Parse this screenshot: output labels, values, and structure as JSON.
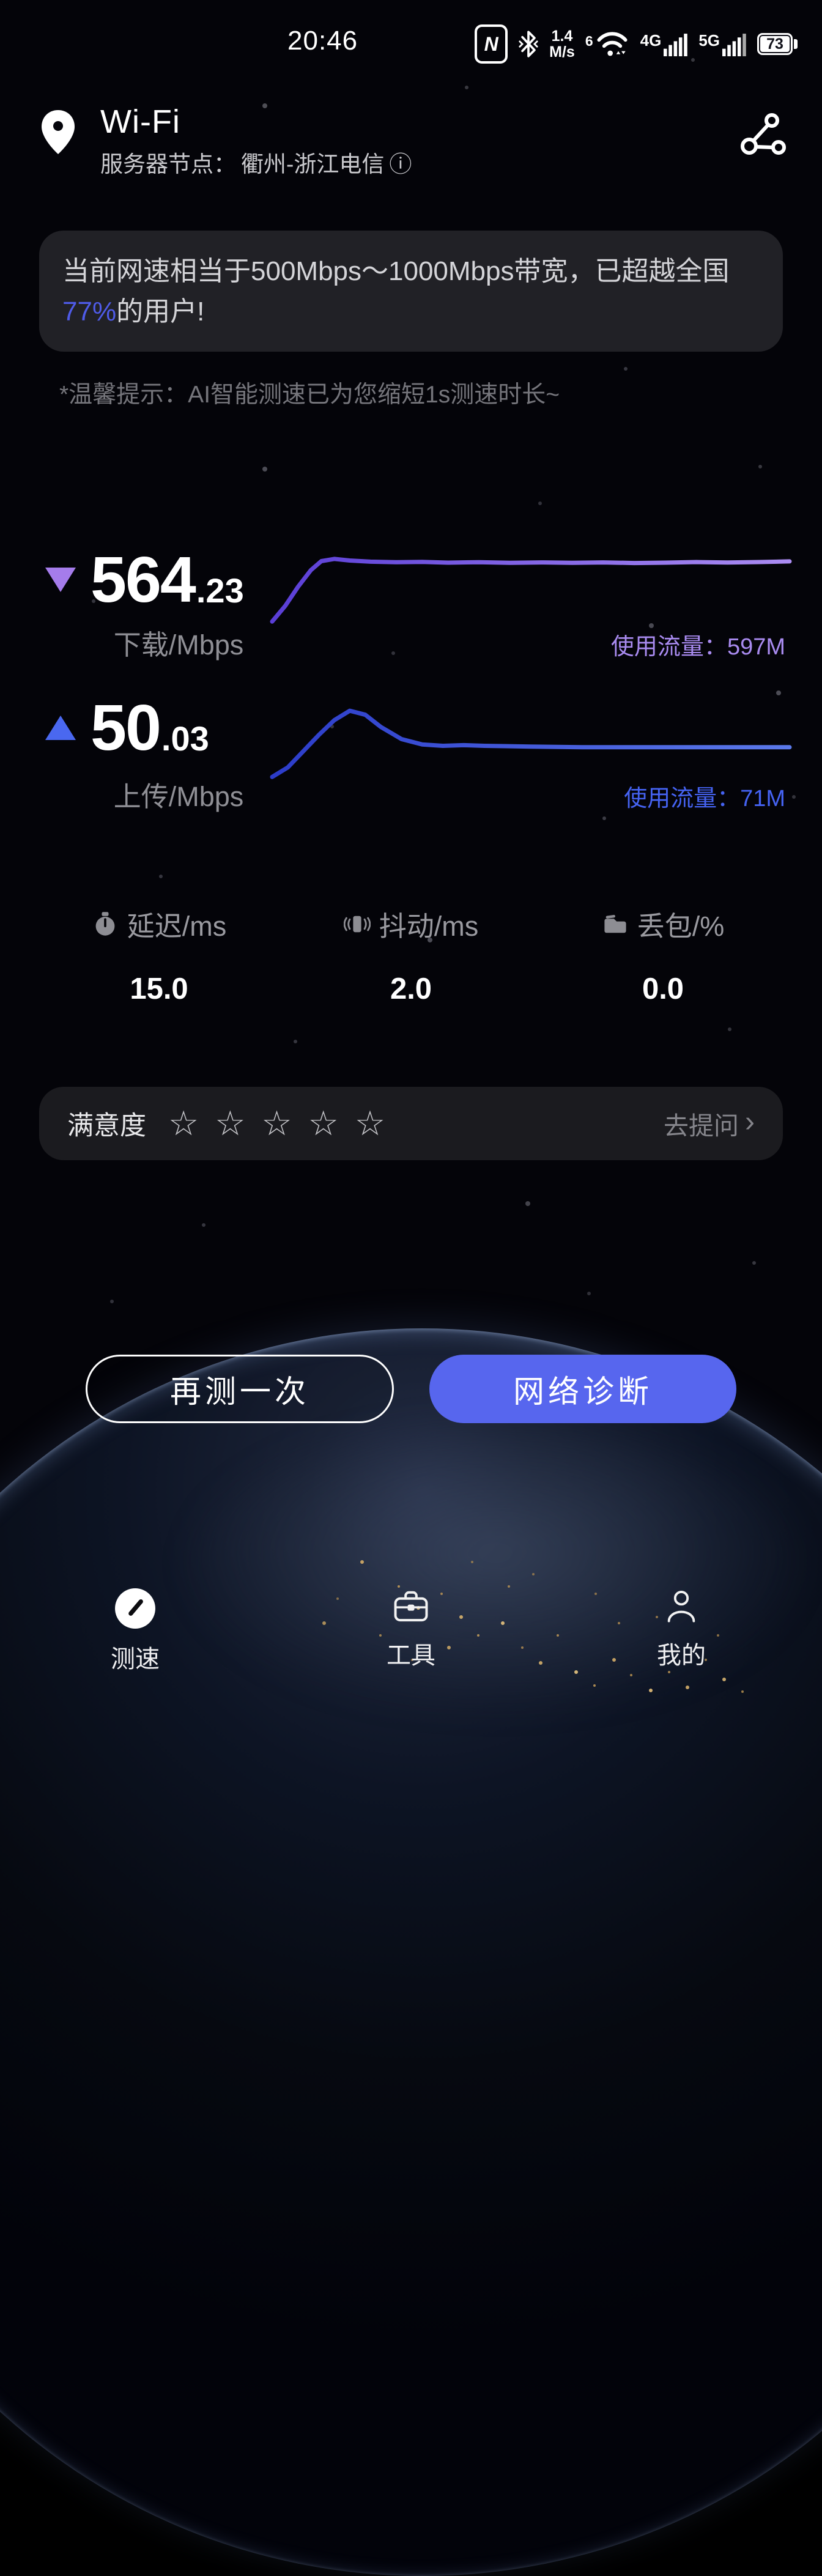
{
  "status_bar": {
    "time": "20:46",
    "nfc_glyph": "N",
    "net_speed_value": "1.4",
    "net_speed_unit": "M/s",
    "wifi_generation": "6",
    "cellular_1": "4G",
    "cellular_2": "5G",
    "battery_percent": "73"
  },
  "header": {
    "title": "Wi-Fi",
    "server_label": "服务器节点：",
    "server_value": "衢州-浙江电信",
    "info_icon": "ⓘ"
  },
  "banner": {
    "text_before": "当前网速相当于500Mbps～1000Mbps带宽，已超越全国",
    "highlight": "77%",
    "text_after": "的用户!"
  },
  "tip": "*温馨提示：AI智能测速已为您缩短1s测速时长~",
  "download": {
    "value_int": "564",
    "value_dec": ".23",
    "label": "下载/Mbps",
    "usage_label": "使用流量：",
    "usage_value": "597M"
  },
  "upload": {
    "value_int": "50",
    "value_dec": ".03",
    "label": "上传/Mbps",
    "usage_label": "使用流量：",
    "usage_value": "71M"
  },
  "stats": [
    {
      "label": "延迟/ms",
      "value": "15.0",
      "icon": "stopwatch-icon"
    },
    {
      "label": "抖动/ms",
      "value": "2.0",
      "icon": "vibrate-icon"
    },
    {
      "label": "丢包/%",
      "value": "0.0",
      "icon": "packet-box-icon"
    }
  ],
  "satisfaction": {
    "label": "满意度",
    "star_count": 5,
    "star_char": "☆",
    "action_label": "去提问",
    "chevron": "›"
  },
  "buttons": {
    "retest": "再测一次",
    "diagnose": "网络诊断"
  },
  "nav": [
    {
      "label": "测速",
      "icon": "speedometer-icon",
      "active": true
    },
    {
      "label": "工具",
      "icon": "toolbox-icon",
      "active": false
    },
    {
      "label": "我的",
      "icon": "profile-icon",
      "active": false
    }
  ],
  "colors": {
    "background": "#040409",
    "banner_bg": "#212126",
    "card_bg": "#1b1b1f",
    "highlight_blue": "#4f5be8",
    "download_accent": "#a57ceb",
    "download_usage_text": "#a98bf0",
    "upload_accent": "#4a68f0",
    "upload_usage_text": "#4563f2",
    "diagnose_button": "#5766ee",
    "muted_text": "#8f8f95"
  },
  "chart_data": [
    {
      "type": "line",
      "name": "download-speed-sparkline",
      "unit": "Mbps",
      "ylim": [
        0,
        700
      ],
      "x_percent": [
        0,
        2.5,
        5,
        7.5,
        9.5,
        12,
        15,
        19,
        24,
        29,
        34,
        40,
        46,
        52,
        58,
        64,
        70,
        76,
        82,
        88,
        94,
        100
      ],
      "values": [
        70,
        200,
        360,
        500,
        575,
        593,
        580,
        570,
        566,
        568,
        562,
        566,
        561,
        564,
        561,
        564,
        559,
        562,
        567,
        563,
        567,
        573
      ],
      "color_start": "#5a3ed6",
      "color_end": "#ab8cf2",
      "grid": false,
      "legend": false
    },
    {
      "type": "line",
      "name": "upload-speed-sparkline",
      "unit": "Mbps",
      "ylim": [
        0,
        62
      ],
      "x_percent": [
        0,
        3,
        6,
        9,
        12,
        15,
        18,
        21,
        25,
        29,
        33,
        37,
        41,
        45,
        50,
        55,
        60,
        65,
        70,
        75,
        80,
        85,
        90,
        95,
        100
      ],
      "values": [
        3,
        10,
        22,
        34,
        45,
        52,
        49,
        40,
        31,
        27,
        26,
        26.5,
        26,
        25.8,
        25.5,
        25.2,
        25,
        25,
        25,
        25,
        25,
        25,
        25,
        25,
        25
      ],
      "color_start": "#2c3cc9",
      "color_end": "#5b79ea",
      "grid": false,
      "legend": false
    }
  ]
}
